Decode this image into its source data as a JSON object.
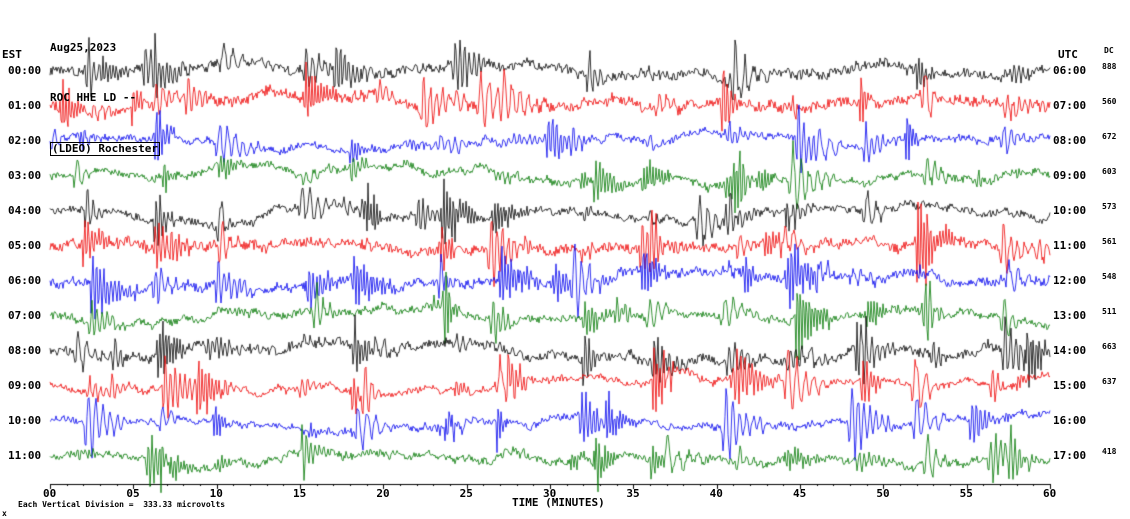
{
  "chart_data": {
    "type": "line",
    "subtype": "seismogram-helicorder",
    "title_lines": [
      "Aug25,2023",
      "ROC HHE LD --",
      "(LDEO) Rochester"
    ],
    "left_axis_label": "EST",
    "right_axis_label": "UTC",
    "dc_label": "DC",
    "xlabel": "TIME (MINUTES)",
    "footer": "Each Vertical Division =  333.33 microvolts",
    "footer_mark": "x",
    "x_range_minutes": [
      0,
      60
    ],
    "x_tick_step_minutes": 5,
    "x_ticks": [
      "00",
      "05",
      "10",
      "15",
      "20",
      "25",
      "30",
      "35",
      "40",
      "45",
      "50",
      "55",
      "60"
    ],
    "grid": false,
    "legend": "none",
    "trace_colors": {
      "black": "#000000",
      "red": "#ee0000",
      "blue": "#0000ee",
      "green": "#007700"
    },
    "rows": [
      {
        "est": "00:00",
        "utc": "06:00",
        "dc": "888",
        "color": "black"
      },
      {
        "est": "01:00",
        "utc": "07:00",
        "dc": "560",
        "color": "red"
      },
      {
        "est": "02:00",
        "utc": "08:00",
        "dc": "672",
        "color": "blue"
      },
      {
        "est": "03:00",
        "utc": "09:00",
        "dc": "603",
        "color": "green"
      },
      {
        "est": "04:00",
        "utc": "10:00",
        "dc": "573",
        "color": "black"
      },
      {
        "est": "05:00",
        "utc": "11:00",
        "dc": "561",
        "color": "red"
      },
      {
        "est": "06:00",
        "utc": "12:00",
        "dc": "548",
        "color": "blue"
      },
      {
        "est": "07:00",
        "utc": "13:00",
        "dc": "511",
        "color": "green"
      },
      {
        "est": "08:00",
        "utc": "14:00",
        "dc": "663",
        "color": "black"
      },
      {
        "est": "09:00",
        "utc": "15:00",
        "dc": "637",
        "color": "red"
      },
      {
        "est": "10:00",
        "utc": "16:00",
        "dc": "",
        "color": "blue"
      },
      {
        "est": "11:00",
        "utc": "17:00",
        "dc": "418",
        "color": "green"
      }
    ]
  }
}
